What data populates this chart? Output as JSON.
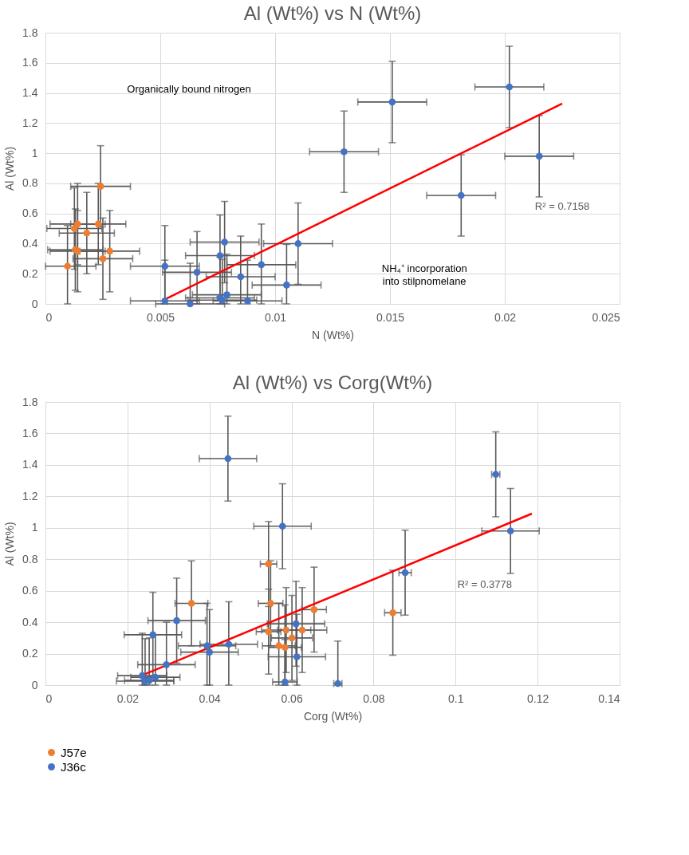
{
  "chart_data": [
    {
      "type": "scatter",
      "title": "Al (Wt%) vs N (Wt%)",
      "xlabel": "N (Wt%)",
      "ylabel": "Al (Wt%)",
      "xlim": [
        0,
        0.025
      ],
      "xticks": [
        0,
        0.005,
        0.01,
        0.015,
        0.02,
        0.025
      ],
      "ylim": [
        0,
        1.8
      ],
      "yticks": [
        0,
        0.2,
        0.4,
        0.6,
        0.8,
        1,
        1.2,
        1.4,
        1.6,
        1.8
      ],
      "grid": true,
      "legend": false,
      "marker": "circle",
      "annotations": [
        "Organically bound nitrogen",
        "NH₄⁺ incorporation into stilpnomelane",
        "R² = 0.7158"
      ],
      "series": [
        {
          "color": "#ed7d31",
          "x": [
            0.0024,
            0.0014,
            0.00126,
            0.0023,
            0.0018,
            0.0013,
            0.0014,
            0.0028,
            0.0025,
            0.00096
          ],
          "values": [
            0.78,
            0.53,
            0.5,
            0.53,
            0.47,
            0.36,
            0.35,
            0.35,
            0.3,
            0.25
          ],
          "errors": [
            0.27,
            0.27,
            0.27,
            0.27,
            0.27,
            0.27,
            0.27,
            0.27,
            0.27,
            [
              0,
              0.52
            ]
          ],
          "xerrors": [
            0.0013,
            0.0012,
            0.0012,
            0.0012,
            0.0012,
            0.0012,
            0.0012,
            0.0013,
            0.0013,
            [
              0,
              0.0022
            ]
          ]
        },
        {
          "color": "#4472c4",
          "x": [
            0.0052,
            0.0052,
            0.0063,
            0.0066,
            0.0076,
            0.0078,
            0.0076,
            0.0079,
            0.0077,
            0.0085,
            0.0088,
            0.0094,
            0.0105,
            0.011,
            0.013,
            0.0151,
            0.0202,
            0.0181,
            0.0215
          ],
          "values": [
            0.25,
            0.02,
            0.0,
            0.21,
            0.32,
            0.41,
            0.04,
            0.06,
            0.025,
            0.18,
            0.02,
            0.26,
            0.125,
            0.4,
            1.01,
            1.34,
            1.44,
            0.72,
            0.98
          ],
          "errors": [
            [
              0,
              0.52
            ],
            [
              0,
              0.29
            ],
            [
              0,
              0.27
            ],
            [
              0,
              0.48
            ],
            0.27,
            0.27,
            [
              0,
              0.31
            ],
            [
              0,
              0.33
            ],
            [
              0,
              0.295
            ],
            [
              0,
              0.45
            ],
            [
              0,
              0.29
            ],
            [
              0,
              0.53
            ],
            [
              0,
              0.395
            ],
            0.27,
            0.27,
            0.27,
            0.27,
            0.27,
            0.27
          ],
          "xerrors": [
            0.0015,
            0.0015,
            0.0015,
            0.0015,
            0.0015,
            0.0015,
            0.0015,
            0.0015,
            0.0015,
            0.0015,
            0.0015,
            0.0015,
            0.0015,
            0.0015,
            0.0015,
            0.0015,
            0.0015,
            0.0015,
            0.0015
          ]
        },
        {
          "type": "line",
          "color": "#ff0000",
          "marker": "none",
          "x": [
            0.0052,
            0.0225
          ],
          "values": [
            0.03,
            1.33
          ]
        }
      ]
    },
    {
      "type": "scatter",
      "title": "Al (Wt%) vs Corg(Wt%)",
      "xlabel": "Corg (Wt%)",
      "ylabel": "Al (Wt%)",
      "xlim": [
        0,
        0.14
      ],
      "xticks": [
        0,
        0.02,
        0.04,
        0.06,
        0.08,
        0.1,
        0.12,
        0.14
      ],
      "ylim": [
        0,
        1.8
      ],
      "yticks": [
        0,
        0.2,
        0.4,
        0.6,
        0.8,
        1,
        1.2,
        1.4,
        1.6,
        1.8
      ],
      "grid": true,
      "legend": "bottom",
      "marker": "circle",
      "annotations": [
        "R² = 0.3778"
      ],
      "series": [
        {
          "name": "J57e",
          "color": "#ed7d31",
          "x": [
            0.0544,
            0.0356,
            0.0549,
            0.0655,
            0.0544,
            0.0587,
            0.0626,
            0.0601,
            0.0569,
            0.0584,
            0.0847
          ],
          "values": [
            0.77,
            0.52,
            0.52,
            0.48,
            0.34,
            0.35,
            0.35,
            0.3,
            0.25,
            0.24,
            0.46
          ],
          "errors": [
            0.27,
            0.27,
            0.27,
            0.27,
            0.27,
            0.27,
            0.27,
            0.27,
            [
              0,
              0.52
            ],
            [
              0,
              0.51
            ],
            0.27
          ],
          "xerrors": [
            0.002,
            0.004,
            0.003,
            0.003,
            0.003,
            0.006,
            0.006,
            0.005,
            0.004,
            0.004,
            0.002
          ]
        },
        {
          "name": "J36c",
          "color": "#4472c4",
          "x": [
            0.032,
            0.0262,
            0.0394,
            0.04,
            0.0447,
            0.0295,
            0.0236,
            0.0243,
            0.0253,
            0.0268,
            0.0611,
            0.0613,
            0.0584,
            0.0713,
            0.0445,
            0.0578,
            0.1098,
            0.1134,
            0.0877
          ],
          "values": [
            0.41,
            0.32,
            0.25,
            0.21,
            0.26,
            0.13,
            0.06,
            0.025,
            0.03,
            0.05,
            0.39,
            0.18,
            0.02,
            0.01,
            1.44,
            1.01,
            1.34,
            0.98,
            0.715
          ],
          "errors": [
            0.27,
            0.27,
            [
              0,
              0.52
            ],
            [
              0,
              0.48
            ],
            [
              0,
              0.53
            ],
            [
              0,
              0.4
            ],
            [
              0,
              0.33
            ],
            [
              0,
              0.295
            ],
            [
              0,
              0.3
            ],
            [
              0,
              0.32
            ],
            0.27,
            [
              0,
              0.45
            ],
            [
              0,
              0.29
            ],
            [
              0,
              0.28
            ],
            0.27,
            0.27,
            0.27,
            0.27,
            0.27
          ],
          "xerrors": [
            0.007,
            0.007,
            0.007,
            0.007,
            0.007,
            0.007,
            0.006,
            0.007,
            0.006,
            0.006,
            0.007,
            0.007,
            0.003,
            0.001,
            0.007,
            0.007,
            0.001,
            0.007,
            0.0015
          ]
        },
        {
          "type": "line",
          "color": "#ff0000",
          "marker": "none",
          "x": [
            0.0243,
            0.1186
          ],
          "values": [
            0.07,
            1.09
          ]
        }
      ]
    }
  ]
}
